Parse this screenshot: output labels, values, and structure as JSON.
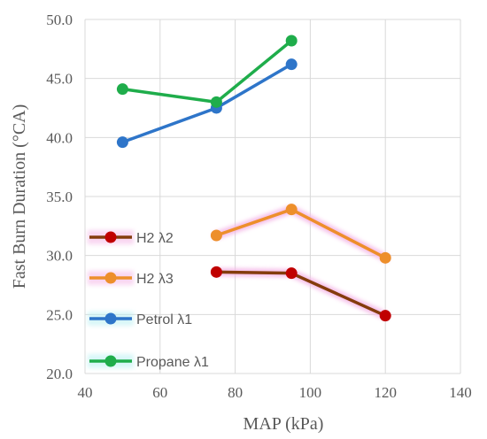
{
  "chart_data": {
    "type": "line",
    "title": "",
    "xlabel": "MAP (kPa)",
    "ylabel": "Fast Burn Duration (°CA)",
    "xlim": [
      40,
      140
    ],
    "ylim": [
      20.0,
      50.0
    ],
    "xticks": [
      40,
      60,
      80,
      100,
      120,
      140
    ],
    "yticks": [
      "20.0",
      "25.0",
      "30.0",
      "35.0",
      "40.0",
      "45.0",
      "50.0"
    ],
    "grid": true,
    "legend_position": "left",
    "series": [
      {
        "name": "H2 λ2",
        "color": "#c00000",
        "line_color": "#843c0c",
        "glow": true,
        "x": [
          75,
          95,
          120
        ],
        "y": [
          28.6,
          28.5,
          24.9
        ]
      },
      {
        "name": "H2 λ3",
        "color": "#ed8f2b",
        "line_color": "#ed8f2b",
        "glow": true,
        "x": [
          75,
          95,
          120
        ],
        "y": [
          31.7,
          33.9,
          29.8
        ]
      },
      {
        "name": "Petrol λ1",
        "color": "#2e75c9",
        "line_color": "#2e75c9",
        "glow": false,
        "x": [
          50,
          75,
          95
        ],
        "y": [
          39.6,
          42.5,
          46.2
        ]
      },
      {
        "name": "Propane λ1",
        "color": "#1fad4b",
        "line_color": "#1fad4b",
        "glow": false,
        "x": [
          50,
          75,
          95
        ],
        "y": [
          44.1,
          43.0,
          48.2
        ]
      }
    ]
  }
}
